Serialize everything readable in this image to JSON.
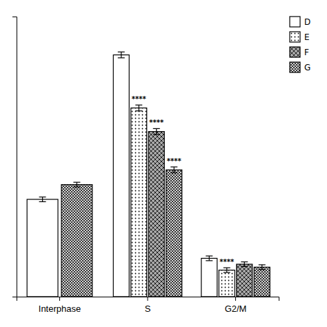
{
  "chart_data": {
    "type": "bar",
    "categories": [
      "Interphase",
      "S",
      "G2/M"
    ],
    "series": [
      {
        "name": "D",
        "color": "#ffffff",
        "values": [
          33,
          82,
          13
        ],
        "errors": [
          0.8,
          1.0,
          0.8
        ]
      },
      {
        "name": "E",
        "color": "#ffffff",
        "values": [
          null,
          64,
          9
        ],
        "errors": [
          null,
          1.0,
          0.8
        ]
      },
      {
        "name": "F",
        "color": "#aaaaaa",
        "values": [
          null,
          56,
          11
        ],
        "errors": [
          null,
          1.0,
          0.8
        ]
      },
      {
        "name": "G",
        "color": "#333333",
        "values": [
          38,
          43,
          10
        ],
        "errors": [
          0.8,
          1.0,
          0.8
        ]
      }
    ],
    "annotations": [
      {
        "text": "****",
        "category": "S",
        "series": "E"
      },
      {
        "text": "****",
        "category": "S",
        "series": "F"
      },
      {
        "text": "****",
        "category": "S",
        "series": "G"
      },
      {
        "text": "****",
        "category": "G2/M",
        "series": "E"
      }
    ],
    "ylim": [
      0,
      95
    ],
    "yticks": [],
    "tick_labels": "x",
    "grid": false,
    "legend": "upper right"
  }
}
